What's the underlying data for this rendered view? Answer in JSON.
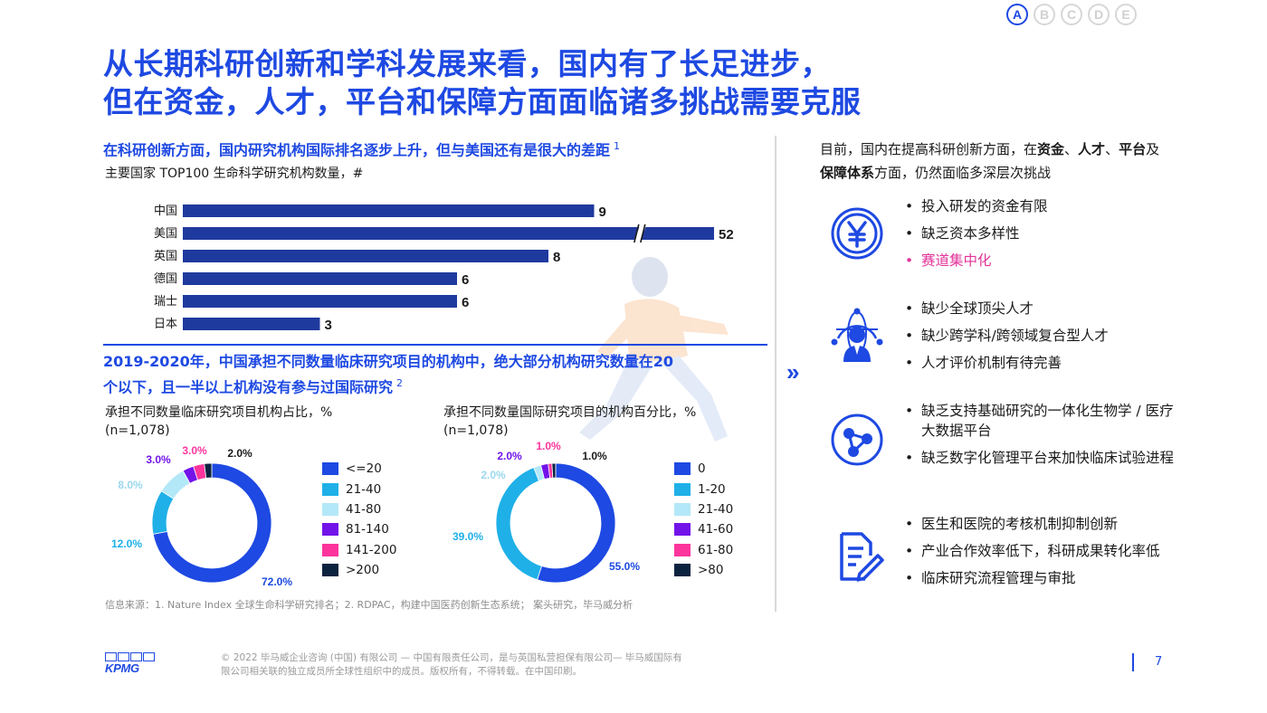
{
  "nav": {
    "items": [
      "A",
      "B",
      "C",
      "D",
      "E"
    ],
    "active": "A"
  },
  "title": {
    "line1": "从长期科研创新和学科发展来看，国内有了长足进步，",
    "line2": "但在资金，人才，平台和保障方面面临诸多挑战需要克服"
  },
  "section1": {
    "heading": "在科研创新方面，国内研究机构国际排名逐步上升，但与美国还有是很大的差距",
    "heading_sup": "1",
    "sublabel": "主要国家 TOP100 生命科学研究机构数量，#"
  },
  "section2": {
    "heading_line1": "2019-2020年，中国承担不同数量临床研究项目的机构中，绝大部分机构研究数量在20",
    "heading_line2": "个以下，且一半以上机构没有参与过国际研究",
    "heading_sup": "2",
    "left_sublabel_line1": "承担不同数量临床研究项目机构占比，%",
    "left_sublabel_line2": "(n=1,078)",
    "right_sublabel_line1": "承担不同数量国际研究项目的机构百分比，%",
    "right_sublabel_line2": "(n=1,078)"
  },
  "chart_data": [
    {
      "type": "bar",
      "orientation": "horizontal",
      "title": "主要国家 TOP100 生命科学研究机构数量，#",
      "categories": [
        "中国",
        "美国",
        "英国",
        "德国",
        "瑞士",
        "日本"
      ],
      "values": [
        9,
        52,
        8,
        6,
        6,
        3
      ],
      "value_labels": [
        "9",
        "52",
        "8",
        "6",
        "6",
        "3"
      ],
      "axis_break_on": "美国",
      "color": "#1f3a9e"
    },
    {
      "type": "pie",
      "style": "donut",
      "title": "承担不同数量临床研究项目机构占比，%",
      "note": "(n=1,078)",
      "labels": [
        "<=20",
        "21-40",
        "41-80",
        "81-140",
        "141-200",
        ">200"
      ],
      "values": [
        72.0,
        12.0,
        8.0,
        3.0,
        3.0,
        2.0
      ],
      "value_labels": [
        "72.0%",
        "12.0%",
        "8.0%",
        "3.0%",
        "3.0%",
        "2.0%"
      ],
      "colors": [
        "#1e49e2",
        "#1fb0e8",
        "#b3e8f8",
        "#7213ea",
        "#fd349c",
        "#0c2340"
      ]
    },
    {
      "type": "pie",
      "style": "donut",
      "title": "承担不同数量国际研究项目的机构百分比，%",
      "note": "(n=1,078)",
      "labels": [
        "0",
        "1-20",
        "21-40",
        "41-60",
        "61-80",
        ">80"
      ],
      "values": [
        55.0,
        39.0,
        2.0,
        2.0,
        1.0,
        1.0
      ],
      "value_labels": [
        "55.0%",
        "39.0%",
        "2.0%",
        "2.0%",
        "1.0%",
        "1.0%"
      ],
      "colors": [
        "#1e49e2",
        "#1fb0e8",
        "#b3e8f8",
        "#7213ea",
        "#fd349c",
        "#0c2340"
      ]
    }
  ],
  "right": {
    "intro_prefix": "目前，国内在提高科研创新方面，在",
    "intro_b1": "资金",
    "intro_sep1": "、",
    "intro_b2": "人才",
    "intro_sep2": "、",
    "intro_b3": "平台",
    "intro_mid": "及",
    "intro_b4": "保障体系",
    "intro_suffix": "方面，仍然面临多深层次挑战",
    "groups": [
      {
        "icon": "yen-icon",
        "bullets": [
          "投入研发的资金有限",
          "缺乏资本多样性",
          "赛道集中化"
        ],
        "highlight_index": 2
      },
      {
        "icon": "global-talent-icon",
        "bullets": [
          "缺少全球顶尖人才",
          "缺少跨学科/跨领域复合型人才",
          "人才评价机制有待完善"
        ]
      },
      {
        "icon": "platform-network-icon",
        "bullets": [
          "缺乏支持基础研究的一体化生物学 / 医疗大数据平台",
          "缺乏数字化管理平台来加快临床试验进程"
        ]
      },
      {
        "icon": "document-edit-icon",
        "bullets": [
          "医生和医院的考核机制抑制创新",
          "产业合作效率低下，科研成果转化率低",
          "临床研究流程管理与审批"
        ]
      }
    ]
  },
  "source": "信息来源：1. Nature Index 全球生命科学研究排名；2. RDPAC，构建中国医药创新生态系统；  案头研究，毕马威分析",
  "footer": {
    "copyright": "© 2022 毕马威企业咨询 (中国) 有限公司 — 中国有限责任公司，是与英国私营担保有限公司— 毕马威国际有限公司相关联的独立成员所全球性组织中的成员。版权所有，不得转载。在中国印刷。",
    "page_number": "7",
    "logo_text": "KPMG"
  },
  "colors": {
    "accent": "#1e49e2",
    "bar": "#1f3a9e",
    "highlight": "#e3349a"
  }
}
